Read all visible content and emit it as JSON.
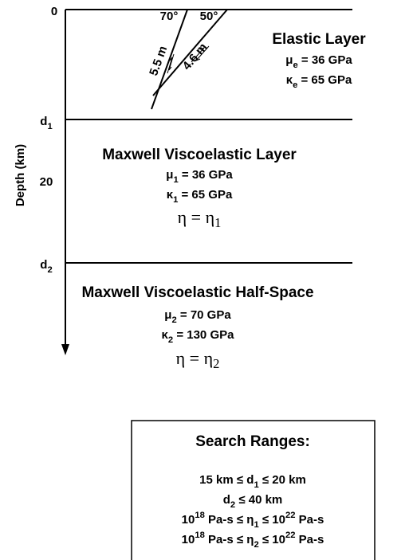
{
  "axis": {
    "label": "Depth (km)",
    "ticks": [
      [
        {
          "t": "0"
        }
      ],
      [
        {
          "t": "d"
        },
        {
          "sub": "1"
        }
      ],
      [
        {
          "t": "20"
        }
      ],
      [
        {
          "t": "d"
        },
        {
          "sub": "2"
        }
      ]
    ]
  },
  "faults": [
    {
      "angle": "70°",
      "slip": "5.5 m"
    },
    {
      "angle": "50°",
      "slip": "4.6 m"
    }
  ],
  "layers": [
    {
      "title": "Elastic Layer",
      "lines": [
        [
          {
            "t": "μ"
          },
          {
            "sub": "e"
          },
          {
            "t": " = 36 GPa"
          }
        ],
        [
          {
            "t": "κ"
          },
          {
            "sub": "e"
          },
          {
            "t": " = 65 GPa"
          }
        ]
      ]
    },
    {
      "title": "Maxwell Viscoelastic Layer",
      "lines": [
        [
          {
            "t": "μ"
          },
          {
            "sub": "1"
          },
          {
            "t": " = 36 GPa"
          }
        ],
        [
          {
            "t": "κ"
          },
          {
            "sub": "1"
          },
          {
            "t": " = 65 GPa"
          }
        ],
        [
          {
            "t": "η = η"
          },
          {
            "sub": "1"
          }
        ]
      ]
    },
    {
      "title": "Maxwell Viscoelastic Half-Space",
      "lines": [
        [
          {
            "t": "μ"
          },
          {
            "sub": "2"
          },
          {
            "t": " = 70 GPa"
          }
        ],
        [
          {
            "t": "κ"
          },
          {
            "sub": "2"
          },
          {
            "t": " = 130 GPa"
          }
        ],
        [
          {
            "t": "η = η"
          },
          {
            "sub": "2"
          }
        ]
      ]
    }
  ],
  "search": {
    "title": "Search Ranges:",
    "lines": [
      [
        {
          "t": "15 km ≤ d"
        },
        {
          "sub": "1"
        },
        {
          "t": " ≤ 20 km"
        }
      ],
      [
        {
          "t": "d"
        },
        {
          "sub": "2"
        },
        {
          "t": " ≤ 40 km"
        }
      ],
      [
        {
          "t": "10"
        },
        {
          "sup": "18"
        },
        {
          "t": " Pa-s ≤ η"
        },
        {
          "sub": "1"
        },
        {
          "t": " ≤ 10"
        },
        {
          "sup": "22"
        },
        {
          "t": " Pa-s"
        }
      ],
      [
        {
          "t": "10"
        },
        {
          "sup": "18"
        },
        {
          "t": " Pa-s ≤ η"
        },
        {
          "sub": "2"
        },
        {
          "t": " ≤ 10"
        },
        {
          "sup": "22"
        },
        {
          "t": " Pa-s"
        }
      ]
    ]
  }
}
